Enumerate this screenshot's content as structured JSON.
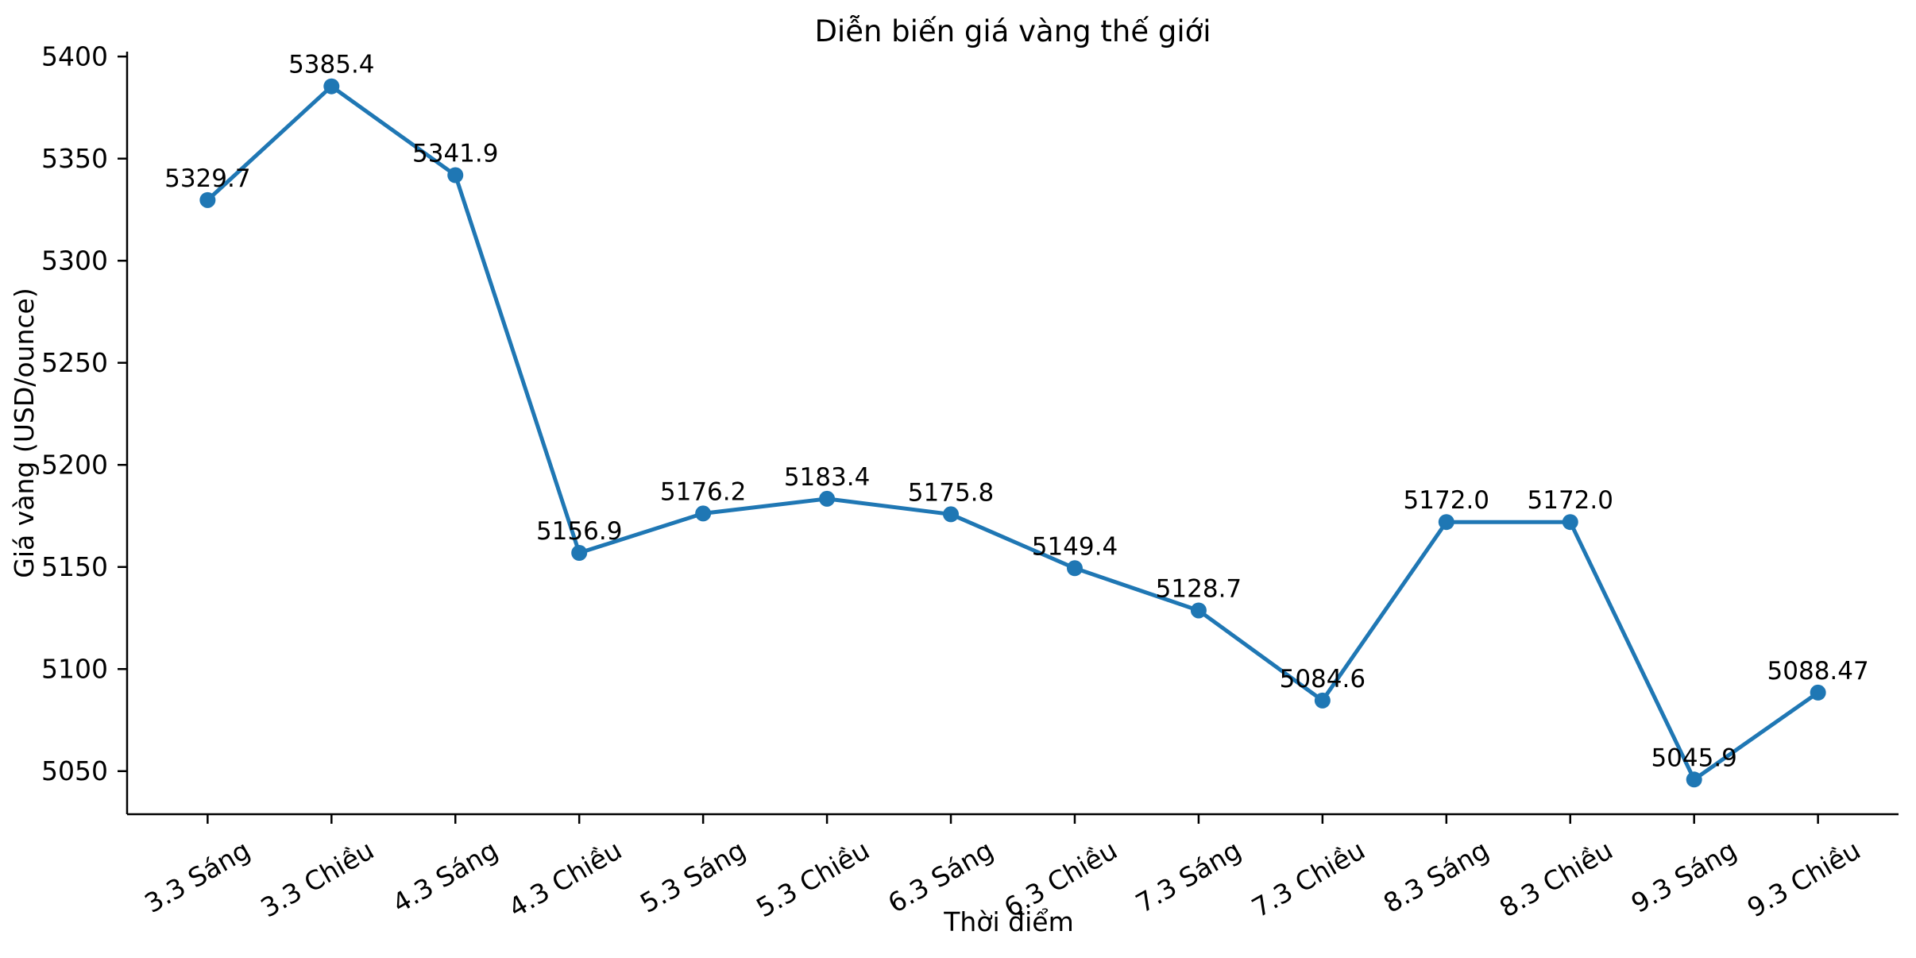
{
  "chart_data": {
    "type": "line",
    "title": "Diễn biến giá vàng thế giới",
    "xlabel": "Thời điểm",
    "ylabel": "Giá vàng (USD/ounce)",
    "categories": [
      "3.3 Sáng",
      "3.3 Chiều",
      "4.3 Sáng",
      "4.3 Chiều",
      "5.3 Sáng",
      "5.3 Chiều",
      "6.3 Sáng",
      "6.3 Chiều",
      "7.3 Sáng",
      "7.3 Chiều",
      "8.3 Sáng",
      "8.3 Chiều",
      "9.3 Sáng",
      "9.3 Chiều"
    ],
    "values": [
      5329.7,
      5385.4,
      5341.9,
      5156.9,
      5176.2,
      5183.4,
      5175.8,
      5149.4,
      5128.7,
      5084.6,
      5172.0,
      5172.0,
      5045.9,
      5088.47
    ],
    "point_labels": [
      "5329.7",
      "5385.4",
      "5341.9",
      "5156.9",
      "5176.2",
      "5183.4",
      "5175.8",
      "5149.4",
      "5128.7",
      "5084.6",
      "5172.0",
      "5172.0",
      "5045.9",
      "5088.47"
    ],
    "yticks": [
      5050,
      5100,
      5150,
      5200,
      5250,
      5300,
      5350,
      5400
    ],
    "ylim": [
      5028.9,
      5402.4
    ],
    "line_color": "#1f77b4",
    "marker": "o",
    "grid": false,
    "legend": null,
    "background": "#ffffff",
    "text_color": "#000000",
    "xtick_rotation_deg": 30
  }
}
